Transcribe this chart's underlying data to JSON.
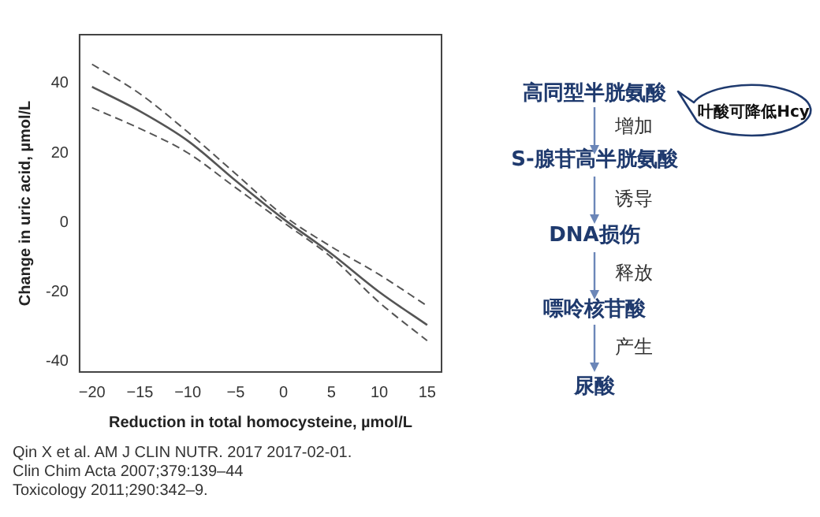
{
  "chart_data": {
    "type": "line",
    "xlabel": "Reduction in total homocysteine, µmol/L",
    "ylabel": "Change in uric acid, µmol/L",
    "x": [
      -20,
      -15,
      -10,
      -5,
      0,
      5,
      10,
      15
    ],
    "series": [
      {
        "color": "#555555",
        "values": [
          39,
          32,
          23.5,
          12,
          1,
          -9,
          -20,
          -29.5
        ]
      },
      {
        "color": "#555555",
        "line_style": "dashed",
        "values": [
          33,
          27,
          20,
          10,
          0,
          -10,
          -23,
          -34
        ]
      },
      {
        "color": "#555555",
        "line_style": "dashed",
        "values": [
          45.5,
          37,
          26,
          14,
          2,
          -7,
          -15,
          -24
        ]
      }
    ],
    "xlim": [
      -21.3,
      16.5
    ],
    "ylim": [
      -43,
      54
    ],
    "xticks": [
      -20,
      -15,
      -10,
      -5,
      0,
      5,
      10,
      15
    ],
    "yticks": [
      -40,
      -20,
      0,
      20,
      40
    ],
    "grid": false,
    "legend": false,
    "marker": "none",
    "line_style": "solid",
    "annotations": [
      "Qin X et al. AM J CLIN NUTR. 2017 2017-02-01.",
      "Clin Chim Acta 2007;379:139–44",
      "Toxicology 2011;290:342–9.",
      "高同型半胱氨酸",
      "增加",
      "S-腺苷高半胱氨酸",
      "诱导",
      "DNA损伤",
      "释放",
      "嘌呤核苷酸",
      "产生",
      "尿酸",
      "叶酸可降低Hcy"
    ]
  }
}
